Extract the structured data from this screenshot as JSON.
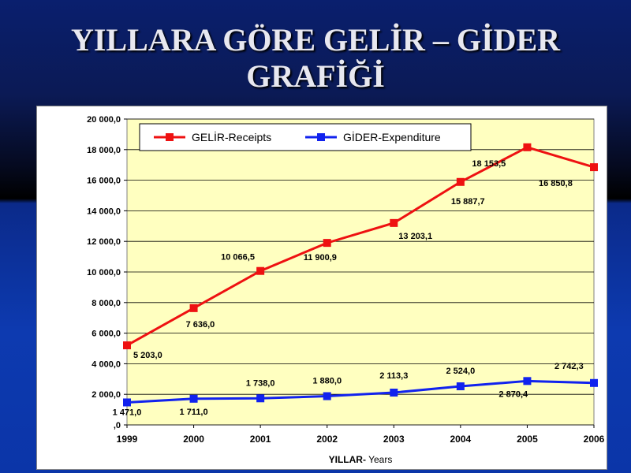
{
  "slide": {
    "title_line1": "YILLARA GÖRE GELİR – GİDER",
    "title_line2": "GRAFİĞİ"
  },
  "colors": {
    "plot_background": "#ffffc0",
    "receipts": "#ee1111",
    "expenditure": "#1122ee"
  },
  "chart_data": {
    "type": "line",
    "title": "",
    "x": [
      "1999",
      "2000",
      "2001",
      "2002",
      "2003",
      "2004",
      "2005",
      "2006"
    ],
    "xlabel_bold": "YILLAR-",
    "xlabel_normal": "Years",
    "ylabel": "",
    "ylim": [
      0,
      20000
    ],
    "yticks": [
      "20 000,0",
      "18 000,0",
      "16 000,0",
      "14 000,0",
      "12 000,0",
      "10 000,0",
      "8 000,0",
      "6 000,0",
      "4 000,0",
      "2 000,0",
      ",0"
    ],
    "grid": true,
    "legend_position": "top",
    "series": [
      {
        "name": "GELİR-Receipts",
        "values": [
          5203.0,
          7636.0,
          10066.5,
          11900.9,
          13203.1,
          15887.7,
          18153.5,
          16850.8
        ],
        "labels": [
          "5 203,0",
          "7 636,0",
          "10 066,5",
          "11 900,9",
          "13 203,1",
          "15 887,7",
          "18 153,5",
          "16 850,8"
        ]
      },
      {
        "name": "GİDER-Expenditure",
        "values": [
          1471.0,
          1711.0,
          1738.0,
          1880.0,
          2113.3,
          2524.0,
          2870.4,
          2742.3
        ],
        "labels": [
          "1 471,0",
          "1 711,0",
          "1 738,0",
          "1 880,0",
          "2 113,3",
          "2 524,0",
          "2 870,4",
          "2 742,3"
        ]
      }
    ]
  }
}
